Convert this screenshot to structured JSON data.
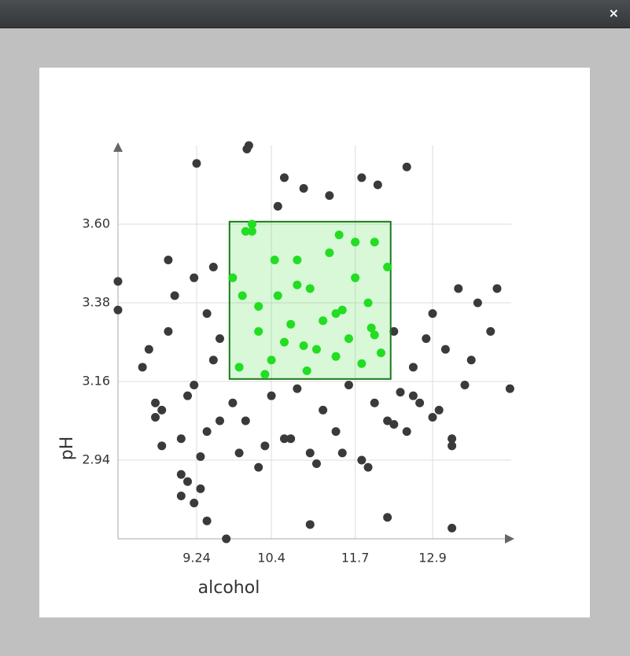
{
  "window": {
    "close": "×"
  },
  "chart_data": {
    "type": "scatter",
    "x_label": "alcohol",
    "y_label": "pH",
    "xlim": [
      8.02,
      14.12
    ],
    "ylim": [
      2.72,
      3.82
    ],
    "xticks": [
      9.24,
      10.4,
      11.7,
      12.9
    ],
    "yticks": [
      {
        "value": 3.6,
        "label": "3.60"
      },
      3.38,
      3.16,
      2.94
    ],
    "grid": true,
    "color": "#3a3a3a",
    "selected_color": "#22dd22",
    "selection": {
      "x": [
        9.75,
        12.25
      ],
      "y": [
        3.167,
        3.607
      ]
    },
    "x": [
      8.02,
      8.02,
      9.24,
      10.02,
      10.05,
      10.6,
      11.8,
      12.05,
      12.5,
      13.9,
      13.8,
      14.1,
      9.4,
      9.7,
      11.0,
      12.2,
      13.2,
      8.4,
      8.6,
      8.8,
      9.0,
      9.2,
      9.4,
      9.6,
      8.5,
      8.7,
      8.9,
      9.1,
      9.3,
      9.5,
      8.7,
      9.0,
      9.2,
      9.4,
      9.6,
      9.8,
      10.0,
      10.2,
      10.4,
      10.6,
      10.8,
      11.0,
      11.2,
      11.4,
      11.6,
      11.8,
      12.0,
      12.2,
      12.4,
      12.6,
      12.8,
      13.0,
      13.2,
      13.4,
      12.9,
      13.1,
      13.3,
      13.6,
      13.5,
      12.7,
      12.5,
      12.3,
      12.6,
      12.9,
      13.2,
      9.1,
      9.3,
      8.8,
      9.5,
      9.9,
      10.3,
      10.7,
      11.1,
      11.5,
      11.9,
      12.3,
      10.1,
      10.5,
      10.9,
      11.3,
      11.7,
      9.0,
      8.6,
      9.2,
      9.9,
      10.2,
      10.5,
      10.8,
      11.1,
      11.4,
      11.7,
      12.0,
      10.0,
      10.4,
      10.7,
      11.0,
      11.3,
      11.6,
      11.9,
      12.2,
      9.8,
      10.3,
      10.9,
      11.5,
      12.1,
      10.1,
      10.6,
      11.2,
      11.8,
      9.95,
      10.45,
      10.95,
      11.45,
      11.95,
      10.2,
      10.8,
      11.4,
      12.0
    ],
    "values": [
      3.44,
      3.36,
      3.77,
      3.81,
      3.82,
      3.73,
      3.73,
      3.71,
      3.76,
      3.42,
      3.3,
      3.14,
      2.77,
      2.72,
      2.76,
      2.78,
      2.75,
      3.2,
      3.1,
      3.3,
      3.0,
      3.15,
      3.35,
      3.05,
      3.25,
      2.98,
      3.4,
      3.12,
      2.95,
      3.22,
      3.08,
      2.9,
      3.45,
      3.02,
      3.28,
      3.1,
      3.05,
      2.92,
      3.12,
      3.0,
      3.14,
      2.96,
      3.08,
      3.02,
      3.15,
      2.94,
      3.1,
      3.05,
      3.13,
      3.2,
      3.28,
      3.08,
      3.0,
      3.15,
      3.35,
      3.25,
      3.42,
      3.38,
      3.22,
      3.1,
      3.02,
      3.3,
      3.12,
      3.06,
      2.98,
      2.88,
      2.86,
      3.5,
      3.48,
      2.96,
      2.98,
      3.0,
      2.93,
      2.96,
      2.92,
      3.04,
      3.58,
      3.65,
      3.7,
      3.68,
      3.55,
      2.84,
      3.06,
      2.82,
      3.2,
      3.3,
      3.4,
      3.5,
      3.25,
      3.35,
      3.45,
      3.55,
      3.58,
      3.22,
      3.32,
      3.42,
      3.52,
      3.28,
      3.38,
      3.48,
      3.45,
      3.18,
      3.26,
      3.36,
      3.24,
      3.6,
      3.27,
      3.33,
      3.21,
      3.4,
      3.5,
      3.19,
      3.57,
      3.31,
      3.37,
      3.43,
      3.23,
      3.29
    ]
  }
}
